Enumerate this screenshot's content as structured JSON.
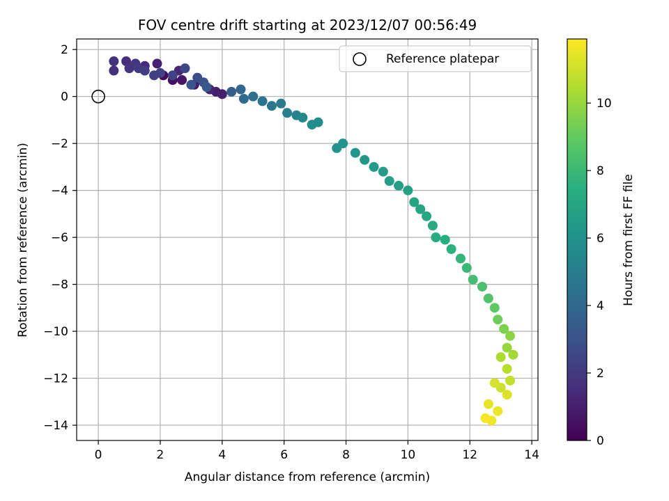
{
  "chart_data": {
    "type": "scatter",
    "title": "FOV centre drift starting at 2023/12/07 00:56:49",
    "xlabel": "Angular distance from reference (arcmin)",
    "ylabel": "Rotation from reference (arcmin)",
    "xlim": [
      -0.7,
      14.2
    ],
    "ylim": [
      -14.65,
      2.45
    ],
    "xticks": [
      0,
      2,
      4,
      6,
      8,
      10,
      12,
      14
    ],
    "yticks": [
      2,
      0,
      -2,
      -4,
      -6,
      -8,
      -10,
      -12,
      -14
    ],
    "xtick_labels": [
      "0",
      "2",
      "4",
      "6",
      "8",
      "10",
      "12",
      "14"
    ],
    "ytick_labels": [
      "2",
      "0",
      "−2",
      "−4",
      "−6",
      "−8",
      "−10",
      "−12",
      "−14"
    ],
    "grid": true,
    "legend": {
      "position": "top-right",
      "entries": [
        "Reference platepar"
      ]
    },
    "reference_point": {
      "x": 0,
      "y": 0,
      "label": "Reference platepar"
    },
    "colorbar": {
      "label": "Hours from first FF file",
      "colormap": "viridis",
      "range": [
        0,
        11.9
      ],
      "ticks": [
        0,
        2,
        4,
        6,
        8,
        10
      ],
      "tick_labels": [
        "0",
        "2",
        "4",
        "6",
        "8",
        "10"
      ]
    },
    "series": [
      {
        "points": [
          {
            "x": 2.1,
            "y": 0.9,
            "c": 0.3
          },
          {
            "x": 2.4,
            "y": 0.7,
            "c": 0.5
          },
          {
            "x": 2.7,
            "y": 0.7,
            "c": 0.7
          },
          {
            "x": 3.1,
            "y": 0.5,
            "c": 0.8
          },
          {
            "x": 3.8,
            "y": 0.2,
            "c": 0.9
          },
          {
            "x": 4.0,
            "y": 0.1,
            "c": 1.0
          },
          {
            "x": 1.9,
            "y": 1.4,
            "c": 1.1
          },
          {
            "x": 3.6,
            "y": 0.3,
            "c": 1.2
          },
          {
            "x": 2.6,
            "y": 1.1,
            "c": 1.3
          },
          {
            "x": 1.5,
            "y": 1.3,
            "c": 1.4
          },
          {
            "x": 0.9,
            "y": 1.5,
            "c": 1.5
          },
          {
            "x": 0.5,
            "y": 1.1,
            "c": 1.6
          },
          {
            "x": 0.5,
            "y": 1.5,
            "c": 1.7
          },
          {
            "x": 1.0,
            "y": 1.2,
            "c": 1.8
          },
          {
            "x": 1.2,
            "y": 1.4,
            "c": 1.9
          },
          {
            "x": 1.3,
            "y": 1.2,
            "c": 2.0
          },
          {
            "x": 1.5,
            "y": 1.1,
            "c": 2.1
          },
          {
            "x": 1.8,
            "y": 0.9,
            "c": 2.2
          },
          {
            "x": 2.0,
            "y": 1.0,
            "c": 2.3
          },
          {
            "x": 2.4,
            "y": 0.9,
            "c": 2.4
          },
          {
            "x": 2.8,
            "y": 1.2,
            "c": 2.5
          },
          {
            "x": 3.2,
            "y": 0.8,
            "c": 2.7
          },
          {
            "x": 3.4,
            "y": 0.6,
            "c": 2.9
          },
          {
            "x": 3.0,
            "y": 0.5,
            "c": 3.1
          },
          {
            "x": 3.5,
            "y": 0.4,
            "c": 3.3
          },
          {
            "x": 4.3,
            "y": 0.2,
            "c": 3.6
          },
          {
            "x": 4.6,
            "y": 0.3,
            "c": 3.9
          },
          {
            "x": 4.7,
            "y": -0.1,
            "c": 4.1
          },
          {
            "x": 5.0,
            "y": 0.0,
            "c": 4.3
          },
          {
            "x": 5.3,
            "y": -0.2,
            "c": 4.5
          },
          {
            "x": 5.6,
            "y": -0.4,
            "c": 4.7
          },
          {
            "x": 5.9,
            "y": -0.3,
            "c": 4.9
          },
          {
            "x": 6.1,
            "y": -0.7,
            "c": 5.1
          },
          {
            "x": 6.4,
            "y": -0.8,
            "c": 5.3
          },
          {
            "x": 6.6,
            "y": -0.9,
            "c": 5.5
          },
          {
            "x": 6.9,
            "y": -1.2,
            "c": 5.7
          },
          {
            "x": 7.1,
            "y": -1.1,
            "c": 5.8
          },
          {
            "x": 7.7,
            "y": -2.2,
            "c": 6.0
          },
          {
            "x": 7.9,
            "y": -2.0,
            "c": 6.1
          },
          {
            "x": 8.3,
            "y": -2.4,
            "c": 6.2
          },
          {
            "x": 8.6,
            "y": -2.7,
            "c": 6.3
          },
          {
            "x": 8.9,
            "y": -3.0,
            "c": 6.4
          },
          {
            "x": 9.2,
            "y": -3.2,
            "c": 6.5
          },
          {
            "x": 9.4,
            "y": -3.6,
            "c": 6.6
          },
          {
            "x": 9.7,
            "y": -3.8,
            "c": 6.7
          },
          {
            "x": 10.0,
            "y": -4.0,
            "c": 6.8
          },
          {
            "x": 10.2,
            "y": -4.5,
            "c": 6.9
          },
          {
            "x": 10.4,
            "y": -4.8,
            "c": 7.0
          },
          {
            "x": 10.6,
            "y": -5.1,
            "c": 7.1
          },
          {
            "x": 10.8,
            "y": -5.5,
            "c": 7.2
          },
          {
            "x": 10.9,
            "y": -6.0,
            "c": 7.3
          },
          {
            "x": 11.2,
            "y": -6.1,
            "c": 7.4
          },
          {
            "x": 11.4,
            "y": -6.5,
            "c": 7.6
          },
          {
            "x": 11.7,
            "y": -6.9,
            "c": 7.8
          },
          {
            "x": 11.9,
            "y": -7.3,
            "c": 8.0
          },
          {
            "x": 12.1,
            "y": -7.8,
            "c": 8.2
          },
          {
            "x": 12.4,
            "y": -8.1,
            "c": 8.4
          },
          {
            "x": 12.6,
            "y": -8.6,
            "c": 8.6
          },
          {
            "x": 12.8,
            "y": -9.0,
            "c": 8.9
          },
          {
            "x": 12.9,
            "y": -9.5,
            "c": 9.2
          },
          {
            "x": 13.1,
            "y": -9.9,
            "c": 9.5
          },
          {
            "x": 13.3,
            "y": -10.2,
            "c": 9.8
          },
          {
            "x": 13.2,
            "y": -10.7,
            "c": 10.0
          },
          {
            "x": 13.4,
            "y": -11.0,
            "c": 10.2
          },
          {
            "x": 13.0,
            "y": -11.1,
            "c": 10.4
          },
          {
            "x": 13.2,
            "y": -11.6,
            "c": 10.6
          },
          {
            "x": 13.3,
            "y": -12.1,
            "c": 10.8
          },
          {
            "x": 13.0,
            "y": -12.4,
            "c": 11.0
          },
          {
            "x": 12.8,
            "y": -12.2,
            "c": 11.2
          },
          {
            "x": 13.2,
            "y": -12.7,
            "c": 11.3
          },
          {
            "x": 12.6,
            "y": -13.1,
            "c": 11.5
          },
          {
            "x": 12.9,
            "y": -13.4,
            "c": 11.6
          },
          {
            "x": 12.7,
            "y": -13.8,
            "c": 11.7
          },
          {
            "x": 12.5,
            "y": -13.7,
            "c": 11.8
          }
        ]
      }
    ]
  }
}
